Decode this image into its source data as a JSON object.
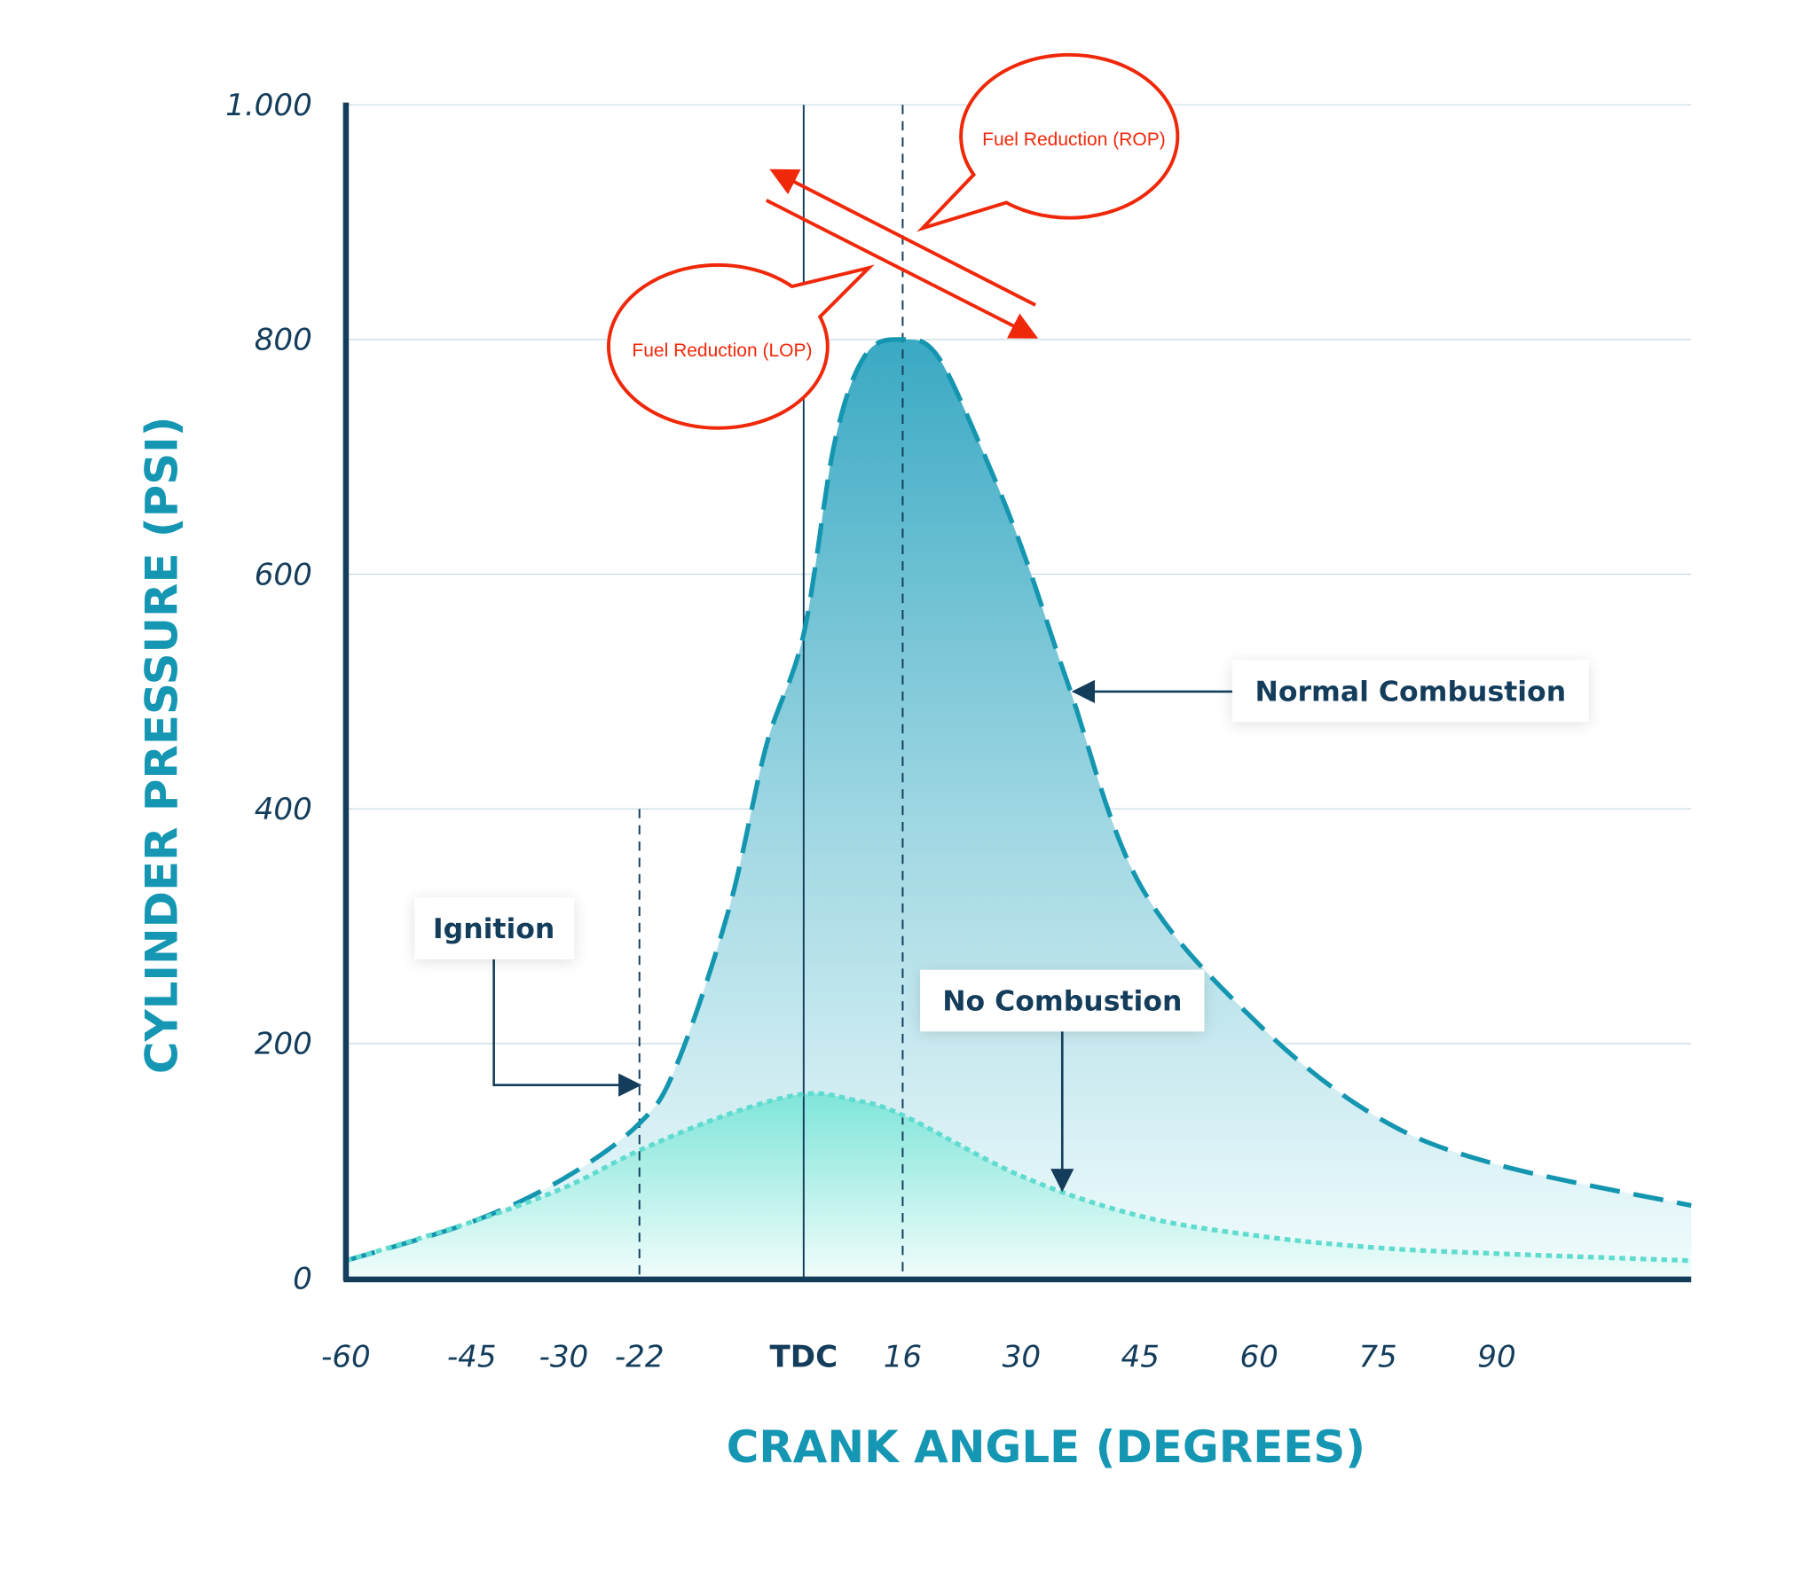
{
  "chart_data": {
    "type": "area",
    "title": "",
    "xlabel": "CRANK ANGLE (DEGREES)",
    "ylabel": "CYLINDER PRESSURE (PSI)",
    "xlim": [
      -60,
      114
    ],
    "ylim": [
      0,
      1000
    ],
    "grid": "horizontal",
    "x_ticks": [
      {
        "value": -60,
        "label": "-60"
      },
      {
        "value": -45,
        "label": "-45"
      },
      {
        "value": -30,
        "label": "-30"
      },
      {
        "value": -22,
        "label": "-22"
      },
      {
        "value": 0,
        "label": "TDC"
      },
      {
        "value": 16,
        "label": "16"
      },
      {
        "value": 30,
        "label": "30"
      },
      {
        "value": 45,
        "label": "45"
      },
      {
        "value": 60,
        "label": "60"
      },
      {
        "value": 75,
        "label": "75"
      },
      {
        "value": 90,
        "label": "90"
      }
    ],
    "y_ticks": [
      {
        "value": 0,
        "label": "0"
      },
      {
        "value": 200,
        "label": "200"
      },
      {
        "value": 400,
        "label": "400"
      },
      {
        "value": 600,
        "label": "600"
      },
      {
        "value": 800,
        "label": "800"
      },
      {
        "value": 1000,
        "label": "1.000"
      }
    ],
    "series": [
      {
        "name": "Normal Combustion",
        "color": "#1496b0",
        "style": "dashed",
        "points": [
          [
            -60,
            15
          ],
          [
            -45,
            48
          ],
          [
            -30,
            85
          ],
          [
            -22,
            132
          ],
          [
            -17,
            182
          ],
          [
            -10,
            315
          ],
          [
            -5,
            454
          ],
          [
            0,
            549
          ],
          [
            5,
            712
          ],
          [
            10,
            787
          ],
          [
            16,
            800
          ],
          [
            20,
            787
          ],
          [
            25,
            712
          ],
          [
            30,
            623
          ],
          [
            36,
            504
          ],
          [
            45,
            335
          ],
          [
            60,
            216
          ],
          [
            75,
            137
          ],
          [
            90,
            97
          ],
          [
            114,
            62
          ]
        ]
      },
      {
        "name": "No Combustion",
        "color": "#5fdccf",
        "style": "dotted",
        "points": [
          [
            -60,
            15
          ],
          [
            -45,
            48
          ],
          [
            -30,
            77
          ],
          [
            -22,
            109
          ],
          [
            -10,
            140
          ],
          [
            0,
            157
          ],
          [
            8,
            152
          ],
          [
            16,
            139
          ],
          [
            30,
            87
          ],
          [
            45,
            53
          ],
          [
            60,
            36
          ],
          [
            75,
            26
          ],
          [
            90,
            21
          ],
          [
            114,
            15
          ]
        ]
      }
    ],
    "reference_lines": [
      {
        "x": 0,
        "style": "solid"
      },
      {
        "x": 16,
        "style": "dashed"
      },
      {
        "x": -22,
        "style": "dashed",
        "to_y": 400
      }
    ],
    "annotations": {
      "normal": "Normal Combustion",
      "ignition": "Ignition",
      "no_combustion": "No Combustion",
      "rop": "Fuel Reduction (ROP)",
      "lop": "Fuel Reduction (LOP)"
    },
    "colors": {
      "axis": "#143d5c",
      "accent": "#1596b3",
      "red": "#f0280a",
      "grid": "#c9dde6"
    }
  }
}
